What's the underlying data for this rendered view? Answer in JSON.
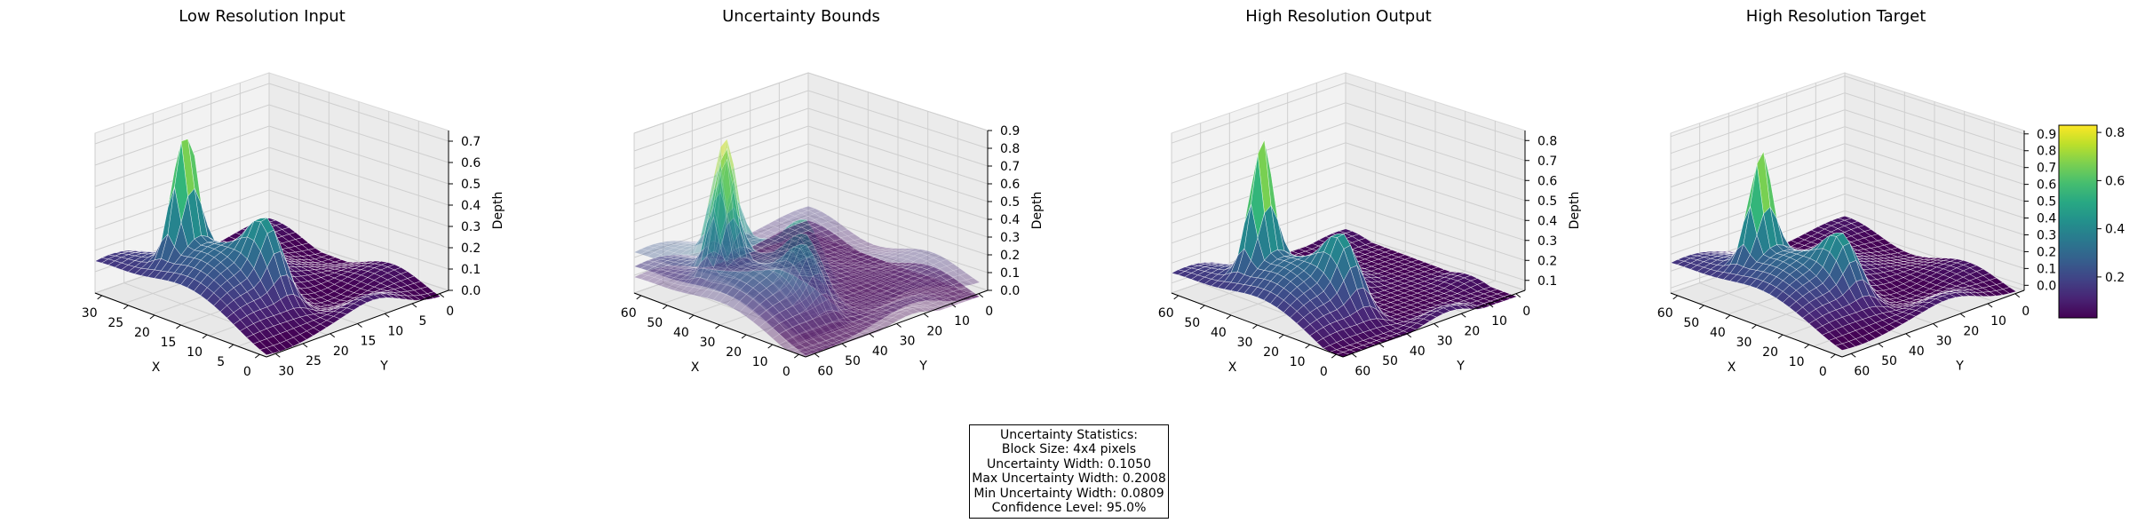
{
  "chart_data": [
    {
      "type": "surface3d",
      "title": "Low Resolution Input",
      "xlabel": "X",
      "ylabel": "Y",
      "zlabel": "Depth",
      "x_ticks": [
        "30",
        "25",
        "20",
        "15",
        "10",
        "5",
        "0"
      ],
      "y_ticks": [
        "30",
        "25",
        "20",
        "15",
        "10",
        "5",
        "0"
      ],
      "z_ticks": [
        "0.0",
        "0.1",
        "0.2",
        "0.3",
        "0.4",
        "0.5",
        "0.6",
        "0.7"
      ],
      "zlim": [
        0.0,
        0.75
      ],
      "colormap": "viridis",
      "grid": true
    },
    {
      "type": "surface3d",
      "title": "Uncertainty Bounds",
      "xlabel": "X",
      "ylabel": "Y",
      "zlabel": "Depth",
      "x_ticks": [
        "60",
        "50",
        "40",
        "30",
        "20",
        "10",
        "0"
      ],
      "y_ticks": [
        "60",
        "50",
        "40",
        "30",
        "20",
        "10",
        "0"
      ],
      "z_ticks": [
        "0.0",
        "0.1",
        "0.2",
        "0.3",
        "0.4",
        "0.5",
        "0.6",
        "0.7",
        "0.8",
        "0.9"
      ],
      "zlim": [
        0.0,
        0.9
      ],
      "colormap": "viridis",
      "grid": true
    },
    {
      "type": "surface3d",
      "title": "High Resolution Output",
      "xlabel": "X",
      "ylabel": "Y",
      "zlabel": "Depth",
      "x_ticks": [
        "60",
        "50",
        "40",
        "30",
        "20",
        "10",
        "0"
      ],
      "y_ticks": [
        "60",
        "50",
        "40",
        "30",
        "20",
        "10",
        "0"
      ],
      "z_ticks": [
        "0.1",
        "0.2",
        "0.3",
        "0.4",
        "0.5",
        "0.6",
        "0.7",
        "0.8"
      ],
      "zlim": [
        0.05,
        0.85
      ],
      "colormap": "viridis",
      "grid": true
    },
    {
      "type": "surface3d",
      "title": "High Resolution Target",
      "xlabel": "X",
      "ylabel": "Y",
      "zlabel": "",
      "x_ticks": [
        "60",
        "50",
        "40",
        "30",
        "20",
        "10",
        "0"
      ],
      "y_ticks": [
        "60",
        "50",
        "40",
        "30",
        "20",
        "10",
        "0"
      ],
      "z_ticks": [
        "0.0",
        "0.1",
        "0.2",
        "0.3",
        "0.4",
        "0.5",
        "0.6",
        "0.7",
        "0.8",
        "0.9"
      ],
      "zlim": [
        -0.03,
        0.92
      ],
      "colormap": "viridis",
      "grid": true,
      "colorbar": {
        "ticks": [
          "0.2",
          "0.4",
          "0.6",
          "0.8"
        ],
        "range": [
          0.03,
          0.83
        ]
      }
    }
  ],
  "stats": {
    "lines": [
      "Uncertainty Statistics:",
      "Block Size: 4x4 pixels",
      "Uncertainty Width: 0.1050",
      "Max Uncertainty Width: 0.2008",
      "Min Uncertainty Width: 0.0809",
      "Confidence Level: 95.0%"
    ]
  }
}
